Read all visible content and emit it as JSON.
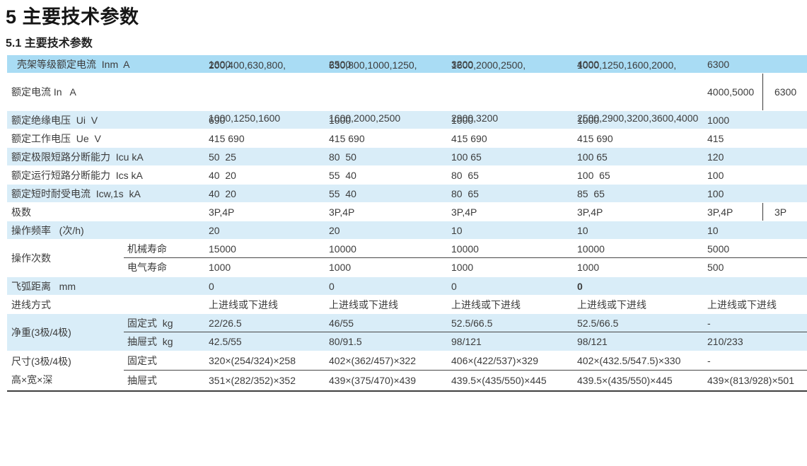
{
  "page": {
    "title": "5 主要技术参数",
    "subtitle": "5.1 主要技术参数"
  },
  "colors": {
    "header_row_bg": "#a9dcf4",
    "stripe_row_bg": "#d9edf8",
    "text": "#3c3c3c",
    "dark_rule": "#3f3f3f"
  },
  "table": {
    "header": {
      "label": "壳架等级额定电流  Inm  A",
      "c1": "1600",
      "c2": "2500",
      "c3": "3200",
      "c4": "4000",
      "c5": "6300"
    },
    "rated_current": {
      "label": "额定电流 In   A",
      "c1l1": "200,400,630,800,",
      "c1l2": "1000,1250,1600",
      "c2l1": "630,800,1000,1250,",
      "c2l2": "1600,2000,2500",
      "c3l1": "1600,2000,2500,",
      "c3l2": "2900,3200",
      "c4l1": "1000,1250,1600,2000,",
      "c4l2": "2500,2900,3200,3600,4000",
      "c5a": "4000,5000",
      "c5b": "6300"
    },
    "insulation_voltage": {
      "label": "额定绝缘电压  Ui  V",
      "c1": "690",
      "c2": "1000",
      "c3": "1000",
      "c4": "1000",
      "c5": "1000"
    },
    "working_voltage": {
      "label": "额定工作电压  Ue  V",
      "c1": "415 690",
      "c2": "415 690",
      "c3": "415 690",
      "c4": "415 690",
      "c5": "415"
    },
    "icu": {
      "label": "额定极限短路分断能力  Icu kA",
      "c1": "50  25",
      "c2": "80  50",
      "c3": "100 65",
      "c4": "100 65",
      "c5": "120"
    },
    "ics": {
      "label": "额定运行短路分断能力  Ics kA",
      "c1": "40  20",
      "c2": "55  40",
      "c3": "80  65",
      "c4": "100  65",
      "c5": "100"
    },
    "icw": {
      "label": "额定短时耐受电流  Icw,1s  kA",
      "c1": "40  20",
      "c2": "55  40",
      "c3": "80  65",
      "c4": "85  65",
      "c5": "100"
    },
    "poles": {
      "label": "极数",
      "c1": "3P,4P",
      "c2": "3P,4P",
      "c3": "3P,4P",
      "c4": "3P,4P",
      "c5a": "3P,4P",
      "c5b": "3P"
    },
    "op_frequency": {
      "label": "操作频率   (次/h)",
      "c1": "20",
      "c2": "20",
      "c3": "10",
      "c4": "10",
      "c5": "10"
    },
    "op_cycles": {
      "label": "操作次数",
      "mech": {
        "sublabel": "机械寿命",
        "c1": "15000",
        "c2": "10000",
        "c3": "10000",
        "c4": "10000",
        "c5": "5000"
      },
      "elec": {
        "sublabel": "电气寿命",
        "c1": "1000",
        "c2": "1000",
        "c3": "1000",
        "c4": "1000",
        "c5": "500"
      }
    },
    "arc_distance": {
      "label": "飞弧距离   mm",
      "c1": "0",
      "c2": "0",
      "c3": "0",
      "c4": "0",
      "c5": ""
    },
    "wiring": {
      "label": "进线方式",
      "c1": "上进线或下进线",
      "c2": "上进线或下进线",
      "c3": "上进线或下进线",
      "c4": "上进线或下进线",
      "c5": "上进线或下进线"
    },
    "weight": {
      "label": "净重(3极/4极)",
      "fixed": {
        "sublabel": "固定式  kg",
        "c1": "22/26.5",
        "c2": "46/55",
        "c3": "52.5/66.5",
        "c4": "52.5/66.5",
        "c5": "-"
      },
      "drawer": {
        "sublabel": "抽屉式  kg",
        "c1": "42.5/55",
        "c2": "80/91.5",
        "c3": "98/121",
        "c4": "98/121",
        "c5": "210/233"
      }
    },
    "dimensions": {
      "label_line1": "尺寸(3极/4极)",
      "label_line2": "高×宽×深",
      "fixed": {
        "sublabel": "固定式",
        "c1": "320×(254/324)×258",
        "c2": "402×(362/457)×322",
        "c3": "406×(422/537)×329",
        "c4": "402×(432.5/547.5)×330",
        "c5": "-"
      },
      "drawer": {
        "sublabel": "抽屉式",
        "c1": "351×(282/352)×352",
        "c2": "439×(375/470)×439",
        "c3": "439.5×(435/550)×445",
        "c4": "439.5×(435/550)×445",
        "c5": "439×(813/928)×501"
      }
    }
  }
}
